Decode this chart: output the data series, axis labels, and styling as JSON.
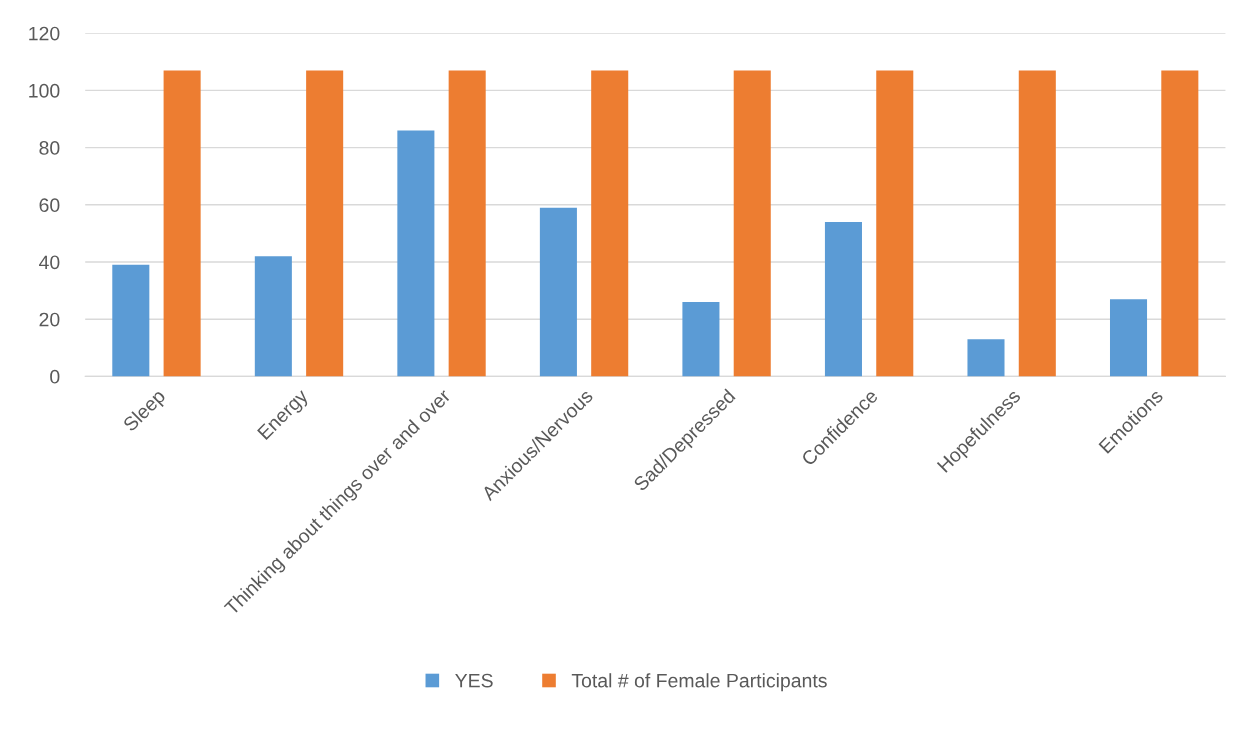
{
  "chart_data": {
    "type": "bar",
    "categories": [
      "Sleep",
      "Energy",
      "Thinking about things over and over",
      "Anxious/Nervous",
      "Sad/Depressed",
      "Confidence",
      "Hopefulness",
      "Emotions"
    ],
    "series": [
      {
        "name": "YES",
        "color": "#5b9bd5",
        "values": [
          39,
          42,
          86,
          59,
          26,
          54,
          13,
          27
        ]
      },
      {
        "name": "Total # of Female Participants",
        "color": "#ed7d31",
        "values": [
          107,
          107,
          107,
          107,
          107,
          107,
          107,
          107
        ]
      }
    ],
    "ylim": [
      0,
      120
    ],
    "yticks": [
      0,
      20,
      40,
      60,
      80,
      100,
      120
    ],
    "grid": "y",
    "legend": "bottom"
  }
}
